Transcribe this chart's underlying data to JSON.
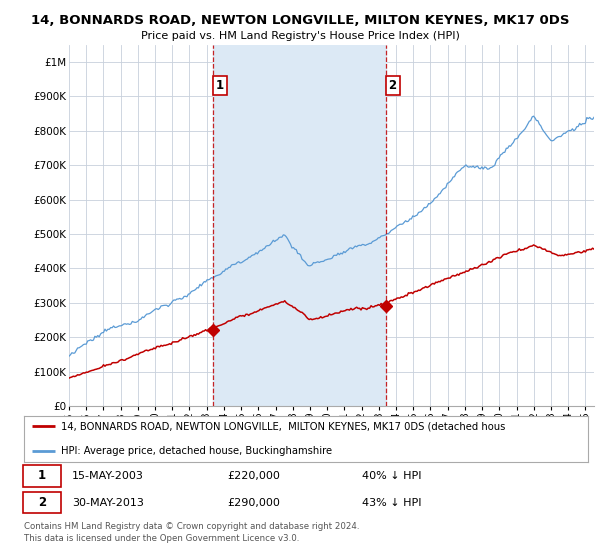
{
  "title": "14, BONNARDS ROAD, NEWTON LONGVILLE, MILTON KEYNES, MK17 0DS",
  "subtitle": "Price paid vs. HM Land Registry's House Price Index (HPI)",
  "hpi_color": "#5B9BD5",
  "property_color": "#C00000",
  "sale1_vline_color": "#C00000",
  "sale2_vline_color": "#C00000",
  "shade_color": "#DCE9F5",
  "background_color": "#FFFFFF",
  "grid_color": "#C8D0DC",
  "ylim": [
    0,
    1050000
  ],
  "yticks": [
    0,
    100000,
    200000,
    300000,
    400000,
    500000,
    600000,
    700000,
    800000,
    900000,
    1000000
  ],
  "ytick_labels": [
    "£0",
    "£100K",
    "£200K",
    "£300K",
    "£400K",
    "£500K",
    "£600K",
    "£700K",
    "£800K",
    "£900K",
    "£1M"
  ],
  "xlim_start": 1995.0,
  "xlim_end": 2025.5,
  "xticks": [
    1995,
    1996,
    1997,
    1998,
    1999,
    2000,
    2001,
    2002,
    2003,
    2004,
    2005,
    2006,
    2007,
    2008,
    2009,
    2010,
    2011,
    2012,
    2013,
    2014,
    2015,
    2016,
    2017,
    2018,
    2019,
    2020,
    2021,
    2022,
    2023,
    2024,
    2025
  ],
  "sale1_x": 2003.37,
  "sale1_y": 220000,
  "sale1_label": "1",
  "sale1_date": "15-MAY-2003",
  "sale1_price": "£220,000",
  "sale1_hpi": "40% ↓ HPI",
  "sale2_x": 2013.41,
  "sale2_y": 290000,
  "sale2_label": "2",
  "sale2_date": "30-MAY-2013",
  "sale2_price": "£290,000",
  "sale2_hpi": "43% ↓ HPI",
  "legend_line1": "14, BONNARDS ROAD, NEWTON LONGVILLE,  MILTON KEYNES, MK17 0DS (detached hous",
  "legend_line2": "HPI: Average price, detached house, Buckinghamshire",
  "footer": "Contains HM Land Registry data © Crown copyright and database right 2024.\nThis data is licensed under the Open Government Licence v3.0."
}
